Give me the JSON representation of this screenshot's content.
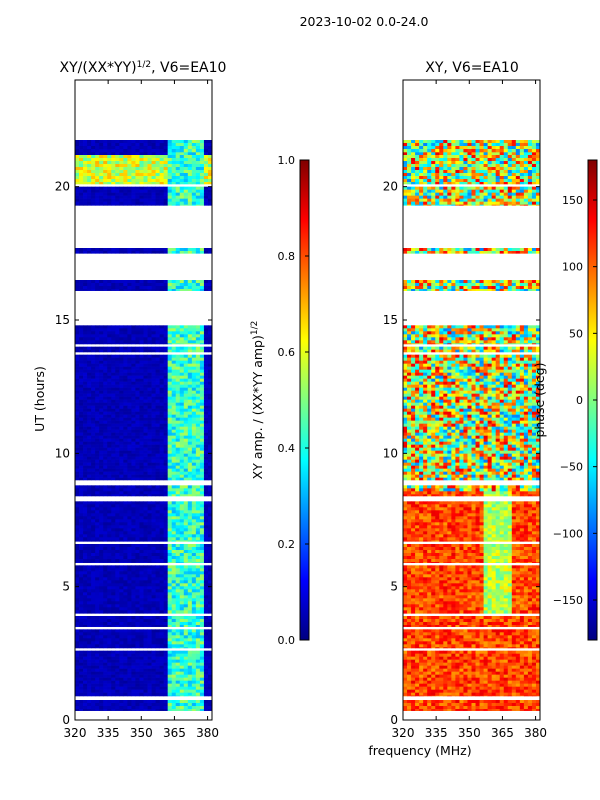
{
  "figure_title": "2023-10-02 0.0-24.0",
  "shared_xlabel": "frequency (MHz)",
  "chart_data": [
    {
      "type": "heatmap",
      "title_main": "XY/(XX*YY)",
      "title_sup": "1/2",
      "title_tail": ", V6=EA10",
      "ylabel": "UT (hours)",
      "xlim": [
        320,
        382
      ],
      "ylim": [
        0,
        24
      ],
      "xticks": [
        320,
        335,
        350,
        365,
        380
      ],
      "yticks": [
        0,
        5,
        10,
        15,
        20
      ],
      "colorscale": "jet",
      "data_bands_hours": [
        [
          0.35,
          0.75
        ],
        [
          0.9,
          2.6
        ],
        [
          2.7,
          3.4
        ],
        [
          3.5,
          3.9
        ],
        [
          4.0,
          5.8
        ],
        [
          5.9,
          6.6
        ],
        [
          6.7,
          8.2
        ],
        [
          8.4,
          8.8
        ],
        [
          9.0,
          13.7
        ],
        [
          13.8,
          14.0
        ],
        [
          14.1,
          14.8
        ],
        [
          16.1,
          16.5
        ],
        [
          17.5,
          17.7
        ],
        [
          19.3,
          20.0
        ],
        [
          20.1,
          21.3
        ],
        [
          21.3,
          21.75
        ]
      ],
      "colorbar": {
        "label_main": "XY amp. / (XX*YY amp)",
        "label_sup": "1/2",
        "min": 0.0,
        "max": 1.0,
        "ticks": [
          "0.0",
          "0.2",
          "0.4",
          "0.6",
          "0.8",
          "1.0"
        ]
      }
    },
    {
      "type": "heatmap",
      "title": "XY, V6=EA10",
      "xlim": [
        320,
        382
      ],
      "ylim": [
        0,
        24
      ],
      "xticks": [
        320,
        335,
        350,
        365,
        380
      ],
      "yticks": [
        0,
        5,
        10,
        15,
        20
      ],
      "colorscale": "jet",
      "data_bands_hours": [
        [
          0.35,
          0.75
        ],
        [
          0.9,
          2.6
        ],
        [
          2.7,
          3.4
        ],
        [
          3.5,
          3.9
        ],
        [
          4.0,
          5.8
        ],
        [
          5.9,
          6.6
        ],
        [
          6.7,
          8.2
        ],
        [
          8.4,
          8.8
        ],
        [
          9.0,
          13.7
        ],
        [
          13.8,
          14.0
        ],
        [
          14.1,
          14.8
        ],
        [
          16.1,
          16.5
        ],
        [
          17.5,
          17.7
        ],
        [
          19.3,
          20.0
        ],
        [
          20.1,
          21.3
        ],
        [
          21.3,
          21.75
        ]
      ],
      "colorbar": {
        "label": "phase (deg)",
        "min": -180,
        "max": 180,
        "ticks": [
          "−150",
          "−100",
          "−50",
          "0",
          "50",
          "100",
          "150"
        ],
        "tick_values": [
          -150,
          -100,
          -50,
          0,
          50,
          100,
          150
        ]
      }
    }
  ]
}
